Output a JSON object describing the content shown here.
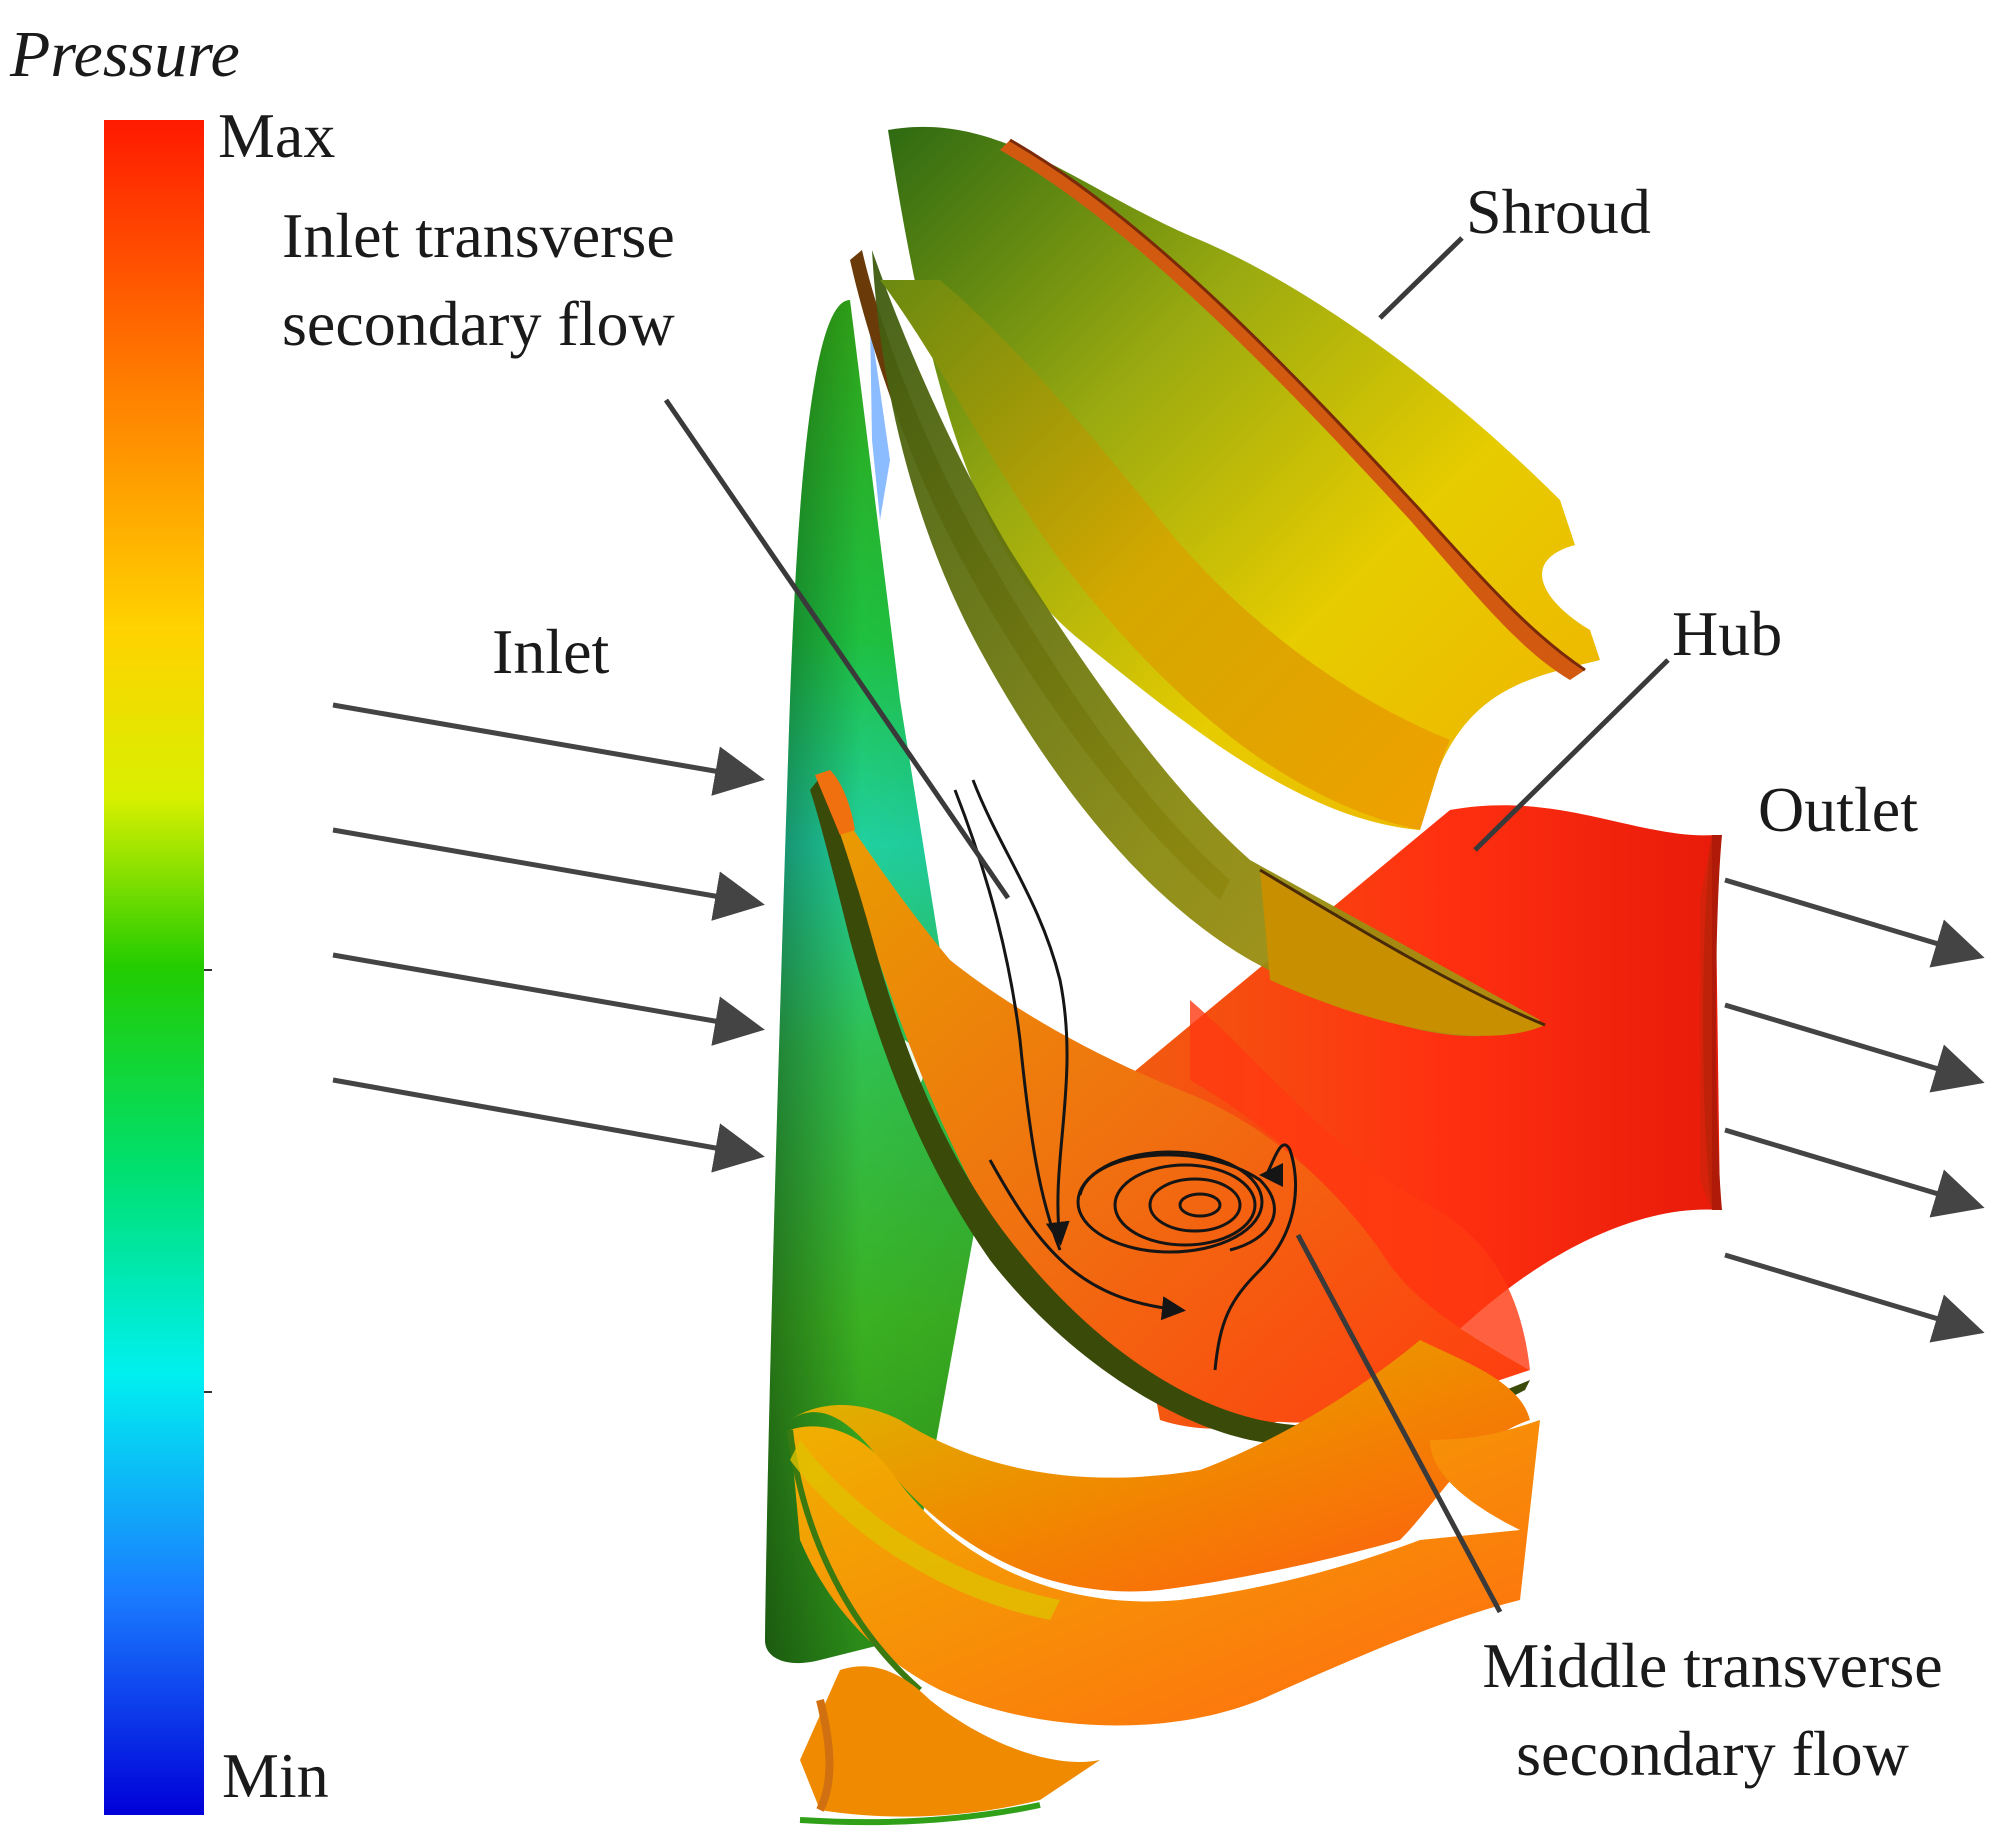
{
  "figure": {
    "colorbar": {
      "title": "Pressure",
      "max_label": "Max",
      "min_label": "Min",
      "gradient": [
        "#ff1a00",
        "#ff7a00",
        "#ffd200",
        "#d8f000",
        "#22cc00",
        "#00e070",
        "#00f0f0",
        "#1a7cff",
        "#0000d8"
      ]
    },
    "annotations": {
      "inlet_transverse_line1": "Inlet transverse",
      "inlet_transverse_line2": "secondary flow",
      "shroud": "Shroud",
      "hub": "Hub",
      "inlet": "Inlet",
      "outlet": "Outlet",
      "middle_transverse_line1": "Middle transverse",
      "middle_transverse_line2": "secondary flow"
    },
    "colors": {
      "arrow": "#444444",
      "leader": "#3a3a3a",
      "streamline": "#151515"
    }
  }
}
